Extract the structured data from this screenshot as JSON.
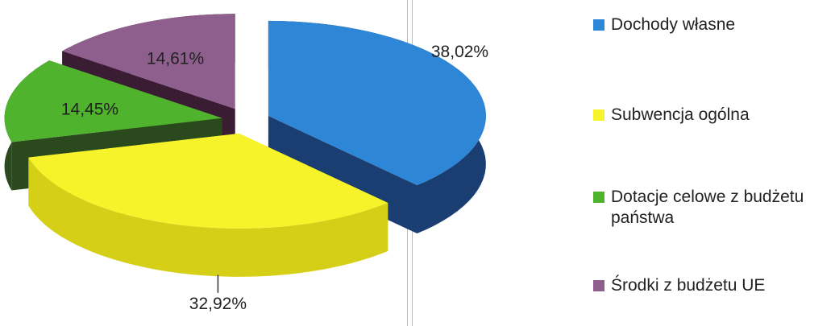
{
  "chart_data": {
    "type": "pie",
    "style": "3d-exploded",
    "legend_position": "right",
    "slices": [
      {
        "label": "Dochody własne",
        "value": 38.02,
        "value_label": "38,02%",
        "color": "#2E86D6",
        "side_color": "#1A3E72"
      },
      {
        "label": "Subwencja ogólna",
        "value": 32.92,
        "value_label": "32,92%",
        "color": "#F7F32A",
        "side_color": "#D6CF18"
      },
      {
        "label": "Dotacje celowe z budżetu państwa",
        "value": 14.45,
        "value_label": "14,45%",
        "color": "#4FB32E",
        "side_color": "#2A4A1E"
      },
      {
        "label": "Środki z budżetu UE",
        "value": 14.61,
        "value_label": "14,61%",
        "color": "#8E5F8C",
        "side_color": "#3A1D32"
      }
    ]
  }
}
